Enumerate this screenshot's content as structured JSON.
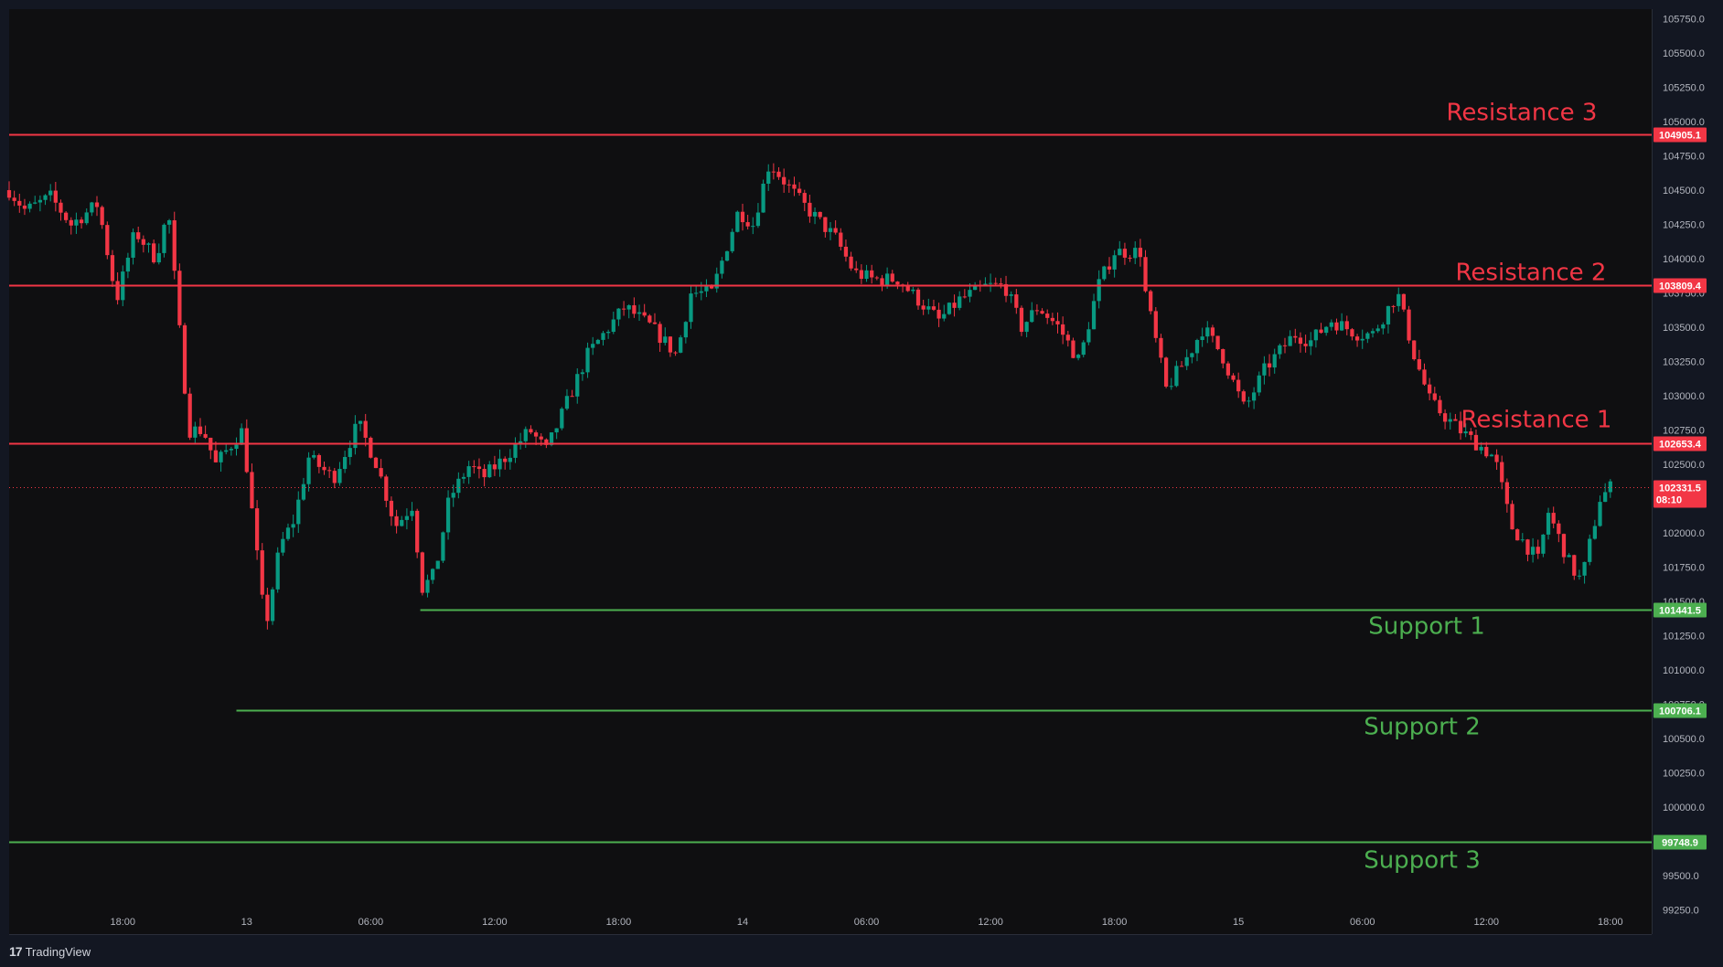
{
  "chart_data": {
    "type": "candlestick",
    "y_axis_labels": [
      "105750.0",
      "105500.0",
      "105250.0",
      "105000.0",
      "104750.0",
      "104500.0",
      "104250.0",
      "104000.0",
      "103750.0",
      "103500.0",
      "103250.0",
      "103000.0",
      "102750.0",
      "102500.0",
      "102250.0",
      "102000.0",
      "101750.0",
      "101500.0",
      "101250.0",
      "101000.0",
      "100750.0",
      "100500.0",
      "100250.0",
      "100000.0",
      "99750.0",
      "99500.0",
      "99250.0"
    ],
    "y_axis_values": [
      105750,
      105500,
      105250,
      105000,
      104750,
      104500,
      104250,
      104000,
      103750,
      103500,
      103250,
      103000,
      102750,
      102500,
      102250,
      102000,
      101750,
      101500,
      101250,
      101000,
      100750,
      100500,
      100250,
      100000,
      99750,
      99500,
      99250
    ],
    "ylim": [
      99075,
      105820
    ],
    "x_axis_labels": [
      "18:00",
      "13",
      "06:00",
      "12:00",
      "18:00",
      "14",
      "06:00",
      "12:00",
      "18:00",
      "15",
      "06:00",
      "12:00",
      "18:00"
    ],
    "x_axis_hours": [
      18,
      24,
      30,
      36,
      42,
      48,
      54,
      60,
      66,
      72,
      78,
      84,
      90
    ],
    "xlim": [
      12.5,
      92.0
    ],
    "levels": [
      {
        "name": "Resistance 3",
        "price": 104905.1,
        "tag": "104905.1",
        "color": "#f23645",
        "start_hour": 12.5
      },
      {
        "name": "Resistance 2",
        "price": 103809.4,
        "tag": "103809.4",
        "color": "#f23645",
        "start_hour": 12.5
      },
      {
        "name": "Resistance 1",
        "price": 102653.4,
        "tag": "102653.4",
        "color": "#f23645",
        "start_hour": 12.5
      },
      {
        "name": "Support 1",
        "price": 101441.5,
        "tag": "101441.5",
        "color": "#4caf50",
        "start_hour": 32.4
      },
      {
        "name": "Support 2",
        "price": 100706.1,
        "tag": "100706.1",
        "color": "#4caf50",
        "start_hour": 23.5
      },
      {
        "name": "Support 3",
        "price": 99748.9,
        "tag": "99748.9",
        "color": "#4caf50",
        "start_hour": 12.5
      }
    ],
    "current_price": {
      "price": 102331.5,
      "tag": "102331.5",
      "countdown": "08:10",
      "color": "#f23645"
    },
    "candle_interval_hours": 0.25,
    "keypoints": [
      [
        12.5,
        104500
      ],
      [
        13.3,
        104350
      ],
      [
        14.5,
        104450
      ],
      [
        15.5,
        104250
      ],
      [
        16.8,
        104400
      ],
      [
        17.7,
        103700
      ],
      [
        18.6,
        104200
      ],
      [
        19.6,
        104000
      ],
      [
        20.2,
        104350
      ],
      [
        21.2,
        102750
      ],
      [
        21.9,
        102750
      ],
      [
        22.5,
        102500
      ],
      [
        23.8,
        102750
      ],
      [
        24.6,
        101700
      ],
      [
        24.9,
        101300
      ],
      [
        25.6,
        101900
      ],
      [
        26.3,
        102100
      ],
      [
        27,
        102550
      ],
      [
        28.2,
        102400
      ],
      [
        29.4,
        102800
      ],
      [
        30.3,
        102500
      ],
      [
        31.2,
        102050
      ],
      [
        32,
        102200
      ],
      [
        32.5,
        101600
      ],
      [
        33.1,
        101700
      ],
      [
        33.8,
        102250
      ],
      [
        34.8,
        102500
      ],
      [
        35.4,
        102400
      ],
      [
        36.5,
        102550
      ],
      [
        37.7,
        102750
      ],
      [
        38.5,
        102600
      ],
      [
        39.5,
        102950
      ],
      [
        40.5,
        103300
      ],
      [
        42.3,
        103650
      ],
      [
        43.6,
        103500
      ],
      [
        44.8,
        103300
      ],
      [
        45.5,
        103750
      ],
      [
        46.5,
        103750
      ],
      [
        47.8,
        104350
      ],
      [
        48.5,
        104250
      ],
      [
        49.3,
        104700
      ],
      [
        50.1,
        104550
      ],
      [
        50.9,
        104400
      ],
      [
        52.5,
        104150
      ],
      [
        53.4,
        103900
      ],
      [
        54.3,
        103850
      ],
      [
        55.5,
        103850
      ],
      [
        56.5,
        103700
      ],
      [
        57.5,
        103550
      ],
      [
        58.5,
        103700
      ],
      [
        59.8,
        103800
      ],
      [
        60.7,
        103800
      ],
      [
        61.5,
        103500
      ],
      [
        62.3,
        103650
      ],
      [
        63.3,
        103500
      ],
      [
        64.3,
        103250
      ],
      [
        65.2,
        103800
      ],
      [
        66,
        104050
      ],
      [
        67.3,
        104050
      ],
      [
        67.5,
        103750
      ],
      [
        68.5,
        103050
      ],
      [
        69.6,
        103300
      ],
      [
        70.3,
        103500
      ],
      [
        71.2,
        103300
      ],
      [
        72.3,
        102900
      ],
      [
        73.3,
        103200
      ],
      [
        74.7,
        103450
      ],
      [
        75.5,
        103400
      ],
      [
        76.5,
        103550
      ],
      [
        77.8,
        103450
      ],
      [
        78.5,
        103450
      ],
      [
        79.7,
        103750
      ],
      [
        80.5,
        103300
      ],
      [
        81.3,
        102950
      ],
      [
        82.7,
        102750
      ],
      [
        84.4,
        102550
      ],
      [
        85.2,
        102050
      ],
      [
        86.5,
        101800
      ],
      [
        87,
        102150
      ],
      [
        88.1,
        101750
      ],
      [
        88.6,
        101650
      ],
      [
        89.5,
        102250
      ],
      [
        90.0,
        102331.5
      ]
    ]
  },
  "branding": {
    "logo": "17",
    "name": "TradingView"
  }
}
